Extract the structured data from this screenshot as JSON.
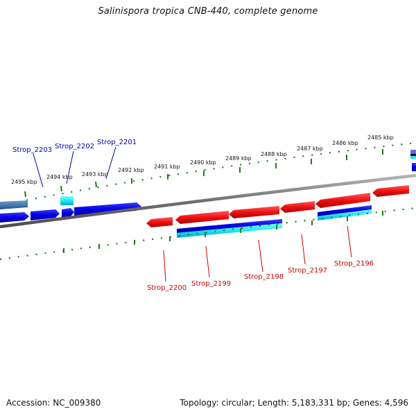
{
  "title": "Salinispora tropica CNB-440, complete genome",
  "footer": {
    "accession": "Accession: NC_009380",
    "summary": "Topology: circular; Length: 5,183,331 bp; Genes: 4,596"
  },
  "colors": {
    "forward_gene": "#0000ee",
    "reverse_gene": "#ee0000",
    "forward_label": "#0000aa",
    "reverse_label": "#cc0000",
    "ticks": "#1f7a1f",
    "backbone": "#777777"
  },
  "kbp_labels": [
    {
      "id": "kbp-2495",
      "text": "2495 kbp"
    },
    {
      "id": "kbp-2494",
      "text": "2494 kbp"
    },
    {
      "id": "kbp-2493",
      "text": "2493 kbp"
    },
    {
      "id": "kbp-2492",
      "text": "2492 kbp"
    },
    {
      "id": "kbp-2491",
      "text": "2491 kbp"
    },
    {
      "id": "kbp-2490",
      "text": "2490 kbp"
    },
    {
      "id": "kbp-2489",
      "text": "2489 kbp"
    },
    {
      "id": "kbp-2488",
      "text": "2488 kbp"
    },
    {
      "id": "kbp-2487",
      "text": "2487 kbp"
    },
    {
      "id": "kbp-2486",
      "text": "2486 kbp"
    },
    {
      "id": "kbp-2485",
      "text": "2485 kbp"
    }
  ],
  "gene_labels": [
    {
      "id": "strop-2203",
      "text": "Strop_2203",
      "strand": "forward"
    },
    {
      "id": "strop-2202",
      "text": "Strop_2202",
      "strand": "forward"
    },
    {
      "id": "strop-2201",
      "text": "Strop_2201",
      "strand": "forward"
    },
    {
      "id": "strop-2200",
      "text": "Strop_2200",
      "strand": "reverse"
    },
    {
      "id": "strop-2199",
      "text": "Strop_2199",
      "strand": "reverse"
    },
    {
      "id": "strop-2198",
      "text": "Strop_2198",
      "strand": "reverse"
    },
    {
      "id": "strop-2197",
      "text": "Strop_2197",
      "strand": "reverse"
    },
    {
      "id": "strop-2196",
      "text": "Strop_2196",
      "strand": "reverse"
    }
  ]
}
